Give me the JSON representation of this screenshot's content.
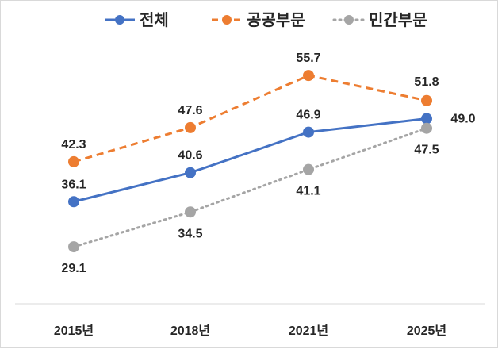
{
  "chart_data": {
    "type": "line",
    "title": "",
    "xlabel": "",
    "ylabel": "",
    "categories": [
      "2015년",
      "2018년",
      "2021년",
      "2025년"
    ],
    "ylim": [
      20,
      70
    ],
    "grid": false,
    "legend_position": "top",
    "series": [
      {
        "name": "전체",
        "values": [
          36.1,
          40.6,
          46.9,
          49.0
        ],
        "labels": [
          "36.1",
          "40.6",
          "46.9",
          "49.0"
        ],
        "color": "#4472C4",
        "style": "solid"
      },
      {
        "name": "공공부문",
        "values": [
          42.3,
          47.6,
          55.7,
          51.8
        ],
        "labels": [
          "42.3",
          "47.6",
          "55.7",
          "51.8"
        ],
        "color": "#ED7D31",
        "style": "dashed"
      },
      {
        "name": "민간부문",
        "values": [
          29.1,
          34.5,
          41.1,
          47.5
        ],
        "labels": [
          "29.1",
          "34.5",
          "41.1",
          "47.5"
        ],
        "color": "#A5A5A5",
        "style": "dotted"
      }
    ]
  }
}
